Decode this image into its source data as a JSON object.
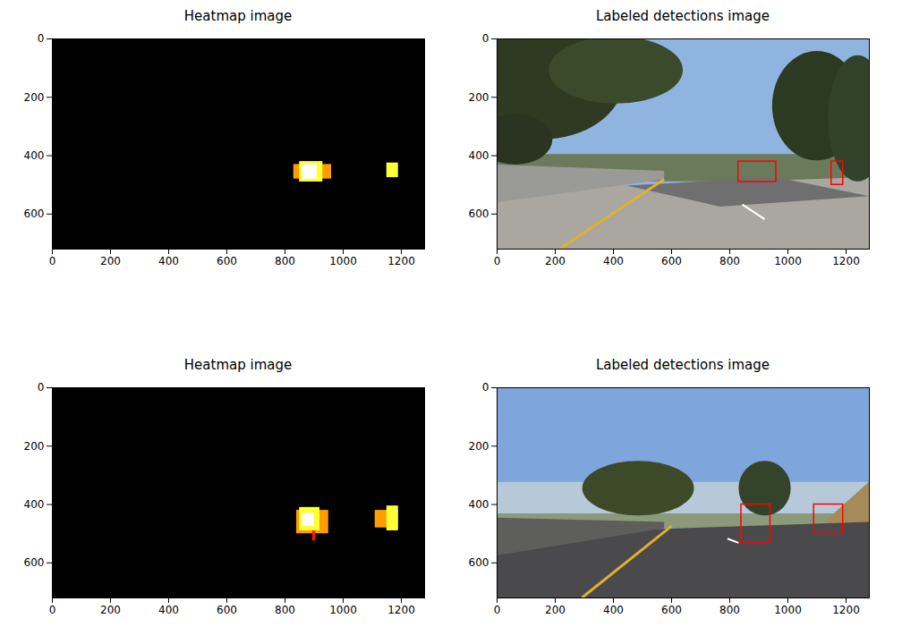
{
  "chart_data": [
    {
      "type": "heatmap",
      "title": "Heatmap image",
      "color": "hot",
      "clim": [
        0,
        5
      ],
      "xlim": [
        0,
        1280
      ],
      "ylim": [
        720,
        0
      ],
      "xticks": [
        0,
        200,
        400,
        600,
        800,
        1000,
        1200
      ],
      "yticks": [
        0,
        200,
        400,
        600
      ],
      "cells": [
        {
          "x0": 830,
          "x1": 960,
          "y0": 430,
          "y1": 480,
          "value": 3
        },
        {
          "x0": 850,
          "x1": 930,
          "y0": 420,
          "y1": 490,
          "value": 4
        },
        {
          "x0": 860,
          "x1": 910,
          "y0": 430,
          "y1": 480,
          "value": 5
        },
        {
          "x0": 1150,
          "x1": 1190,
          "y0": 425,
          "y1": 475,
          "value": 4
        }
      ]
    },
    {
      "type": "image",
      "title": "Labeled detections image",
      "color": "#ff0000",
      "xlim": [
        0,
        1280
      ],
      "ylim": [
        720,
        0
      ],
      "xticks": [
        0,
        200,
        400,
        600,
        800,
        1000,
        1200
      ],
      "yticks": [
        0,
        200,
        400,
        600
      ],
      "boxes": [
        {
          "x0": 830,
          "x1": 960,
          "y0": 420,
          "y1": 490
        },
        {
          "x0": 1150,
          "x1": 1190,
          "y0": 420,
          "y1": 500
        }
      ]
    },
    {
      "type": "heatmap",
      "title": "Heatmap image",
      "color": "hot",
      "clim": [
        0,
        5
      ],
      "xlim": [
        0,
        1280
      ],
      "ylim": [
        720,
        0
      ],
      "xticks": [
        0,
        200,
        400,
        600,
        800,
        1000,
        1200
      ],
      "yticks": [
        0,
        200,
        400,
        600
      ],
      "cells": [
        {
          "x0": 840,
          "x1": 950,
          "y0": 420,
          "y1": 500,
          "value": 3
        },
        {
          "x0": 850,
          "x1": 920,
          "y0": 410,
          "y1": 490,
          "value": 4
        },
        {
          "x0": 860,
          "x1": 900,
          "y0": 430,
          "y1": 475,
          "value": 5
        },
        {
          "x0": 895,
          "x1": 905,
          "y0": 490,
          "y1": 525,
          "value": 2
        },
        {
          "x0": 1110,
          "x1": 1190,
          "y0": 420,
          "y1": 480,
          "value": 3
        },
        {
          "x0": 1150,
          "x1": 1190,
          "y0": 405,
          "y1": 490,
          "value": 4
        }
      ]
    },
    {
      "type": "image",
      "title": "Labeled detections image",
      "color": "#ff0000",
      "xlim": [
        0,
        1280
      ],
      "ylim": [
        720,
        0
      ],
      "xticks": [
        0,
        200,
        400,
        600,
        800,
        1000,
        1200
      ],
      "yticks": [
        0,
        200,
        400,
        600
      ],
      "boxes": [
        {
          "x0": 840,
          "x1": 940,
          "y0": 400,
          "y1": 530
        },
        {
          "x0": 1090,
          "x1": 1190,
          "y0": 400,
          "y1": 500
        }
      ]
    }
  ]
}
